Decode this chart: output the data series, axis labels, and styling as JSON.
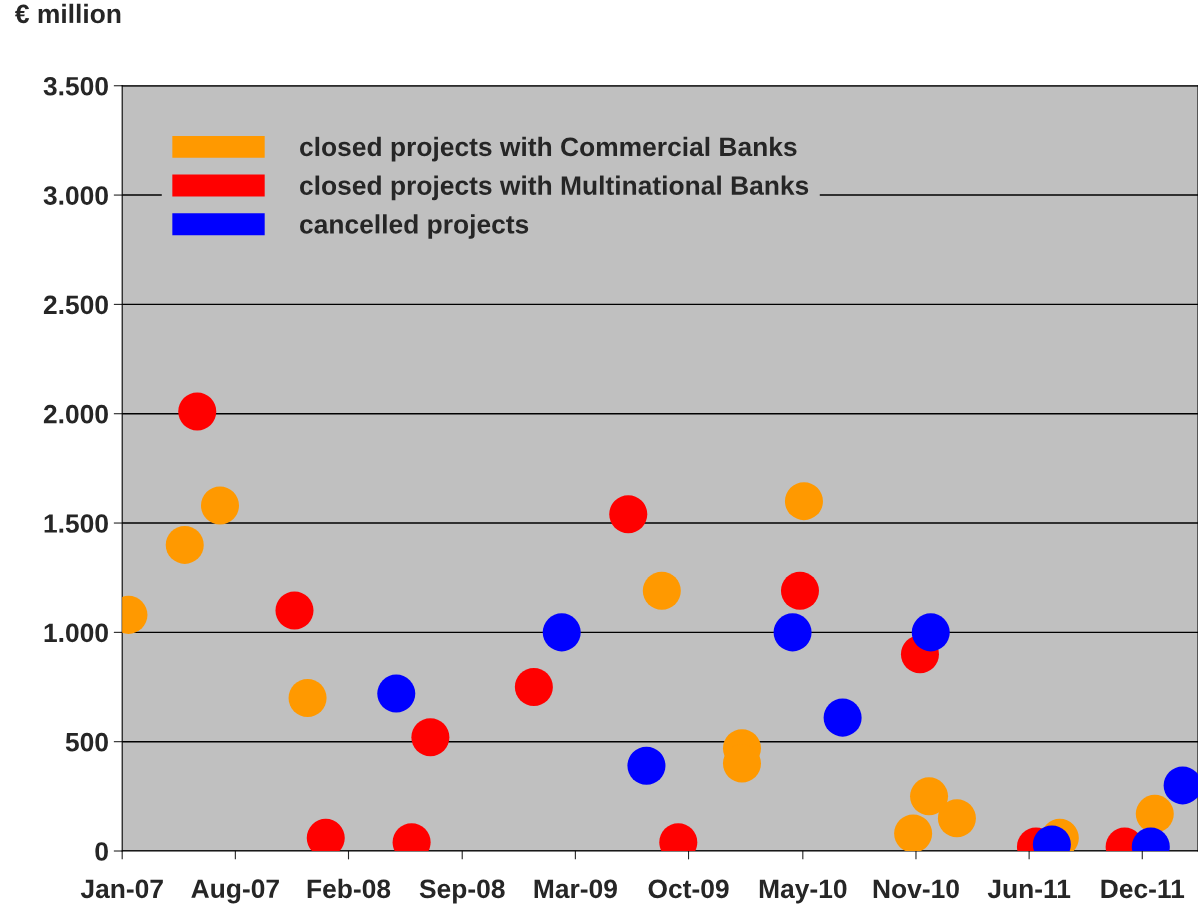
{
  "chart_data": {
    "type": "scatter",
    "ylabel": "€ million",
    "xlim": [
      "2007-01-20",
      "2012-03-26"
    ],
    "xticks": [
      {
        "value": "2007-01-20",
        "label": "Jan-07"
      },
      {
        "value": "2007-08-07",
        "label": "Aug-07"
      },
      {
        "value": "2008-02-22",
        "label": "Feb-08"
      },
      {
        "value": "2008-09-09",
        "label": "Sep-08"
      },
      {
        "value": "2009-03-27",
        "label": "Mar-09"
      },
      {
        "value": "2009-10-12",
        "label": "Oct-09"
      },
      {
        "value": "2010-05-01",
        "label": "May-10"
      },
      {
        "value": "2010-11-16",
        "label": "Nov-10"
      },
      {
        "value": "2011-06-03",
        "label": "Jun-11"
      },
      {
        "value": "2011-12-19",
        "label": "Dec-11"
      }
    ],
    "ylim": [
      0,
      3500
    ],
    "yticks": [
      0,
      500,
      {
        "value": 1000,
        "label": "1.000"
      },
      {
        "value": 1500,
        "label": "1.500"
      },
      {
        "value": 2000,
        "label": "2.000"
      },
      {
        "value": 2500,
        "label": "2.500"
      },
      {
        "value": 3000,
        "label": "3.000"
      },
      {
        "value": 3500,
        "label": "3.500"
      }
    ],
    "grid": "y",
    "legend": "top left",
    "marker": "circle",
    "series": [
      {
        "name": "closed projects with Commercial Banks",
        "color": "#ff9900",
        "x": [
          "2007-01-31",
          "2007-05-10",
          "2007-07-11",
          "2007-12-12",
          "2009-08-26",
          "2010-01-14",
          "2010-01-14",
          "2010-05-03",
          "2010-11-11",
          "2010-12-09",
          "2011-01-27",
          "2011-07-27",
          "2012-01-10"
        ],
        "values": [
          1080,
          1400,
          1580,
          700,
          1190,
          470,
          400,
          1600,
          80,
          250,
          150,
          60,
          170
        ]
      },
      {
        "name": "closed projects with Multinational Banks",
        "color": "#ff0000",
        "x": [
          "2007-06-01",
          "2007-11-19",
          "2008-01-13",
          "2008-06-12",
          "2008-07-15",
          "2009-01-13",
          "2009-06-28",
          "2009-09-24",
          "2010-04-26",
          "2010-11-23",
          "2011-06-15",
          "2011-11-18"
        ],
        "values": [
          2010,
          1100,
          60,
          40,
          520,
          750,
          1540,
          40,
          1190,
          900,
          20,
          20
        ]
      },
      {
        "name": "cancelled projects",
        "color": "#0000ff",
        "x": [
          "2008-05-16",
          "2009-03-03",
          "2009-07-30",
          "2010-04-13",
          "2010-07-10",
          "2010-12-12",
          "2011-07-13",
          "2012-01-03",
          "2012-02-28"
        ],
        "values": [
          720,
          1000,
          390,
          1000,
          610,
          1000,
          30,
          20,
          300
        ]
      }
    ]
  }
}
